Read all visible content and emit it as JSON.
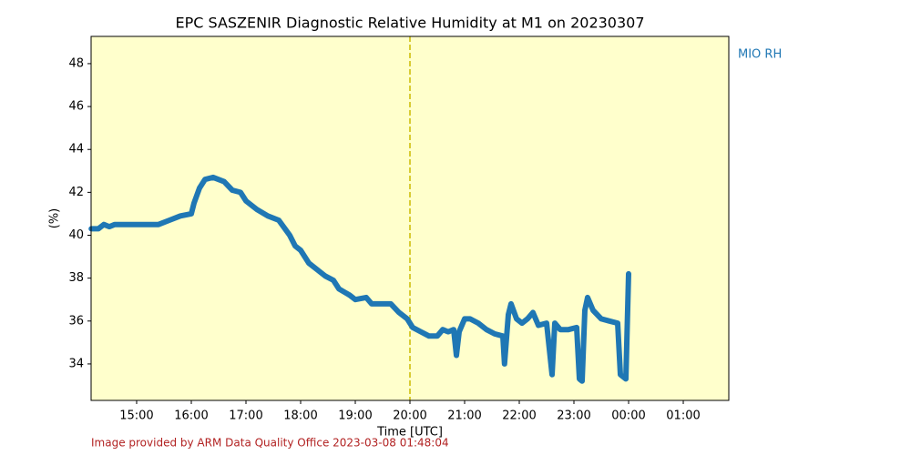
{
  "chart_data": {
    "type": "line",
    "title": "EPC SASZENIR Diagnostic Relative Humidity at M1 on 20230307",
    "xlabel": "Time [UTC]",
    "ylabel": "(%)",
    "footer": "Image provided by ARM Data Quality Office 2023-03-08 01:48:04",
    "background": "#ffffcc",
    "vline": {
      "x": 20,
      "color": "#ccbb00"
    },
    "xlim": [
      14.167,
      25.833
    ],
    "xticks": [
      {
        "value": 15,
        "label": "15:00"
      },
      {
        "value": 16,
        "label": "16:00"
      },
      {
        "value": 17,
        "label": "17:00"
      },
      {
        "value": 18,
        "label": "18:00"
      },
      {
        "value": 19,
        "label": "19:00"
      },
      {
        "value": 20,
        "label": "20:00"
      },
      {
        "value": 21,
        "label": "21:00"
      },
      {
        "value": 22,
        "label": "22:00"
      },
      {
        "value": 23,
        "label": "23:00"
      },
      {
        "value": 24,
        "label": "00:00"
      },
      {
        "value": 25,
        "label": "01:00"
      }
    ],
    "ylim": [
      32.3,
      49.27
    ],
    "yticks": [
      34,
      36,
      38,
      40,
      42,
      44,
      46,
      48
    ],
    "series": [
      {
        "name": "MIO RH",
        "color": "#1f77b4",
        "x": [
          14.17,
          14.3,
          14.4,
          14.5,
          14.6,
          14.8,
          15.0,
          15.2,
          15.4,
          15.6,
          15.8,
          16.0,
          16.05,
          16.15,
          16.25,
          16.4,
          16.6,
          16.75,
          16.9,
          17.0,
          17.2,
          17.4,
          17.6,
          17.8,
          17.9,
          18.0,
          18.15,
          18.3,
          18.45,
          18.6,
          18.7,
          18.9,
          19.0,
          19.2,
          19.3,
          19.5,
          19.65,
          19.8,
          19.95,
          20.05,
          20.2,
          20.35,
          20.5,
          20.6,
          20.7,
          20.8,
          20.85,
          20.9,
          21.0,
          21.1,
          21.25,
          21.4,
          21.55,
          21.7,
          21.73,
          21.8,
          21.85,
          21.95,
          22.05,
          22.15,
          22.25,
          22.35,
          22.5,
          22.6,
          22.65,
          22.75,
          22.9,
          23.05,
          23.1,
          23.15,
          23.2,
          23.25,
          23.35,
          23.5,
          23.65,
          23.8,
          23.85,
          23.95,
          24.0
        ],
        "values": [
          40.3,
          40.3,
          40.5,
          40.4,
          40.5,
          40.5,
          40.5,
          40.5,
          40.5,
          40.7,
          40.9,
          41.0,
          41.5,
          42.2,
          42.6,
          42.7,
          42.5,
          42.1,
          42.0,
          41.6,
          41.2,
          40.9,
          40.7,
          40.0,
          39.5,
          39.3,
          38.7,
          38.4,
          38.1,
          37.9,
          37.5,
          37.2,
          37.0,
          37.1,
          36.8,
          36.8,
          36.8,
          36.4,
          36.1,
          35.7,
          35.5,
          35.3,
          35.3,
          35.6,
          35.5,
          35.6,
          34.4,
          35.5,
          36.1,
          36.1,
          35.9,
          35.6,
          35.4,
          35.3,
          34.0,
          36.3,
          36.8,
          36.1,
          35.9,
          36.1,
          36.4,
          35.8,
          35.9,
          33.5,
          35.9,
          35.6,
          35.6,
          35.7,
          33.3,
          33.2,
          36.5,
          37.1,
          36.5,
          36.1,
          36.0,
          35.9,
          33.5,
          33.3,
          38.2
        ]
      }
    ]
  }
}
